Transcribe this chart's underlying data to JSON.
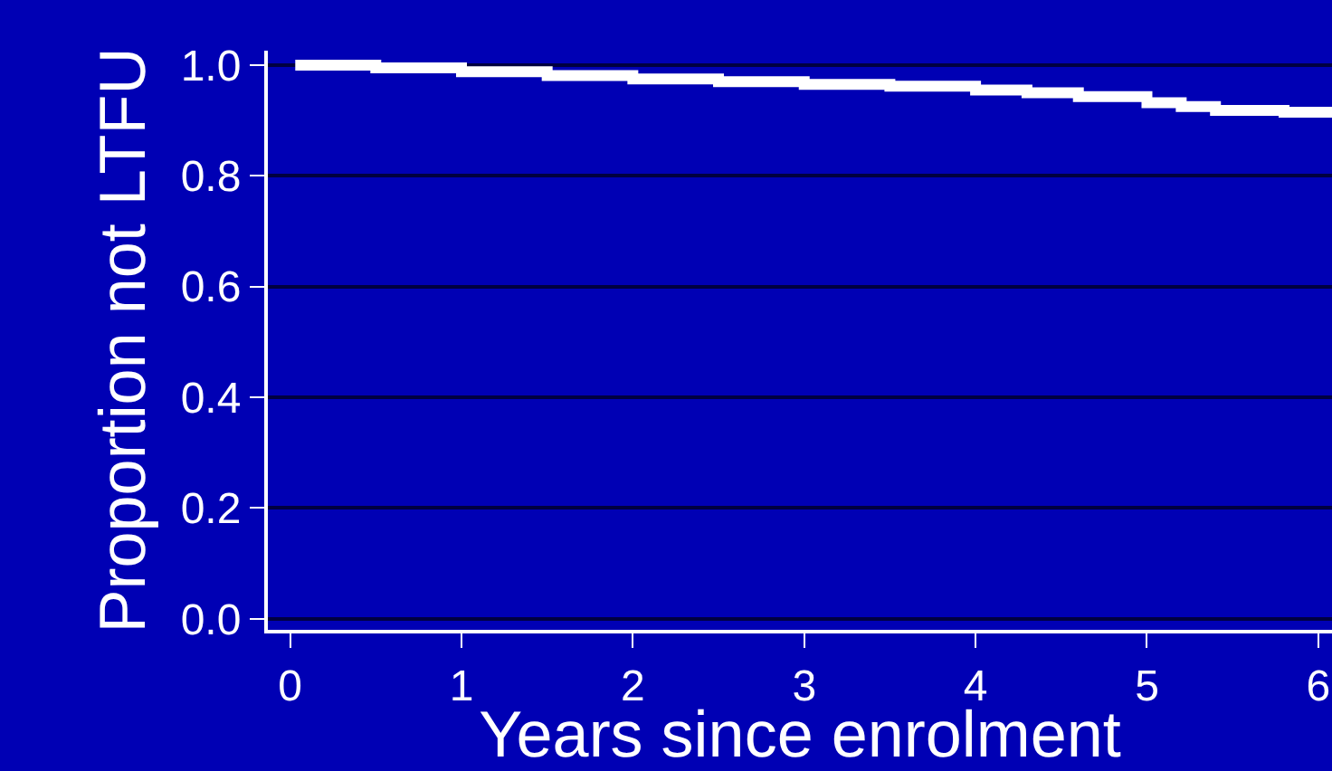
{
  "chart_data": {
    "type": "step",
    "xlabel": "Years since enrolment",
    "ylabel": "Proportion not LTFU",
    "x": [
      0.03,
      0.5,
      1.0,
      1.5,
      2.0,
      2.5,
      3.0,
      3.5,
      4.0,
      4.3,
      4.6,
      5.0,
      5.2,
      5.4,
      5.8,
      6.08
    ],
    "series": [
      {
        "color": "#ffffff",
        "values": [
          1.0,
          0.995,
          0.988,
          0.981,
          0.975,
          0.97,
          0.965,
          0.962,
          0.955,
          0.95,
          0.943,
          0.932,
          0.925,
          0.918,
          0.915,
          0.912
        ]
      }
    ],
    "xlim": [
      -0.13,
      6.08
    ],
    "ylim": [
      -0.02,
      1.026
    ],
    "xticks": [
      0,
      1,
      2,
      3,
      4,
      5,
      6
    ],
    "yticks": [
      {
        "value": 0,
        "label": "0.0"
      },
      0.2,
      0.4,
      0.6,
      0.8,
      {
        "value": 1,
        "label": "1.0"
      }
    ],
    "grid": "y",
    "marker": "none",
    "line_style": "solid"
  }
}
